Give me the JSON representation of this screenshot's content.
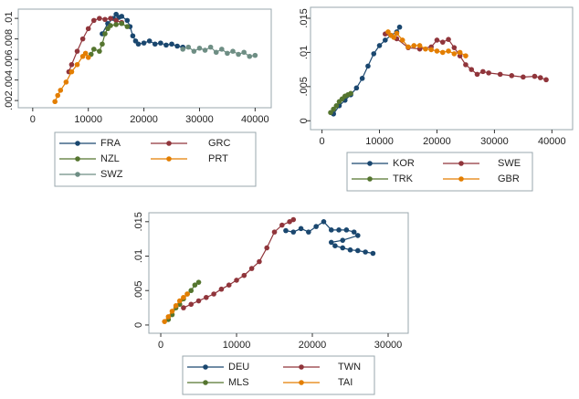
{
  "chart_data": [
    {
      "type": "line",
      "xlim": [
        -2600,
        42900
      ],
      "ylim": [
        0.0013,
        0.0109
      ],
      "xticks": [
        0,
        10000,
        20000,
        30000,
        40000
      ],
      "yticks": [
        {
          "value": 0.002,
          "label": ".002"
        },
        {
          "value": 0.004,
          "label": ".004"
        },
        {
          "value": 0.006,
          "label": ".006"
        },
        {
          "value": 0.008,
          "label": ".008"
        },
        {
          "value": 0.01,
          "label": ".01"
        }
      ],
      "series": [
        {
          "name": "FRA",
          "color": "#1a476f",
          "x": [
            12500,
            13500,
            14500,
            15000,
            15500,
            16000,
            17000,
            17500,
            18000,
            18500,
            19000,
            20000,
            21000,
            22000,
            23000,
            24000,
            25000,
            26000,
            27000
          ],
          "values": [
            0.0085,
            0.0095,
            0.01,
            0.0104,
            0.0101,
            0.0102,
            0.0098,
            0.0092,
            0.0083,
            0.0078,
            0.0075,
            0.0076,
            0.0078,
            0.0075,
            0.0076,
            0.0074,
            0.0075,
            0.0073,
            0.0072
          ]
        },
        {
          "name": "GRC",
          "color": "#90353b",
          "x": [
            6500,
            7000,
            8000,
            9000,
            10000,
            11000,
            12000,
            13000,
            14000,
            15000,
            16000
          ],
          "values": [
            0.0048,
            0.0055,
            0.0068,
            0.008,
            0.009,
            0.0098,
            0.01,
            0.0099,
            0.01,
            0.0098,
            0.0096
          ]
        },
        {
          "name": "NZL",
          "color": "#55752f",
          "x": [
            10500,
            11000,
            12000,
            12500,
            13000,
            13500,
            14000,
            15000,
            16000,
            17000
          ],
          "values": [
            0.0065,
            0.007,
            0.0068,
            0.0075,
            0.0085,
            0.009,
            0.0093,
            0.0094,
            0.0095,
            0.0092
          ]
        },
        {
          "name": "PRT",
          "color": "#e37e00",
          "x": [
            4000,
            4500,
            5000,
            6000,
            7000,
            8000,
            9000,
            9500,
            10000
          ],
          "values": [
            0.0019,
            0.0025,
            0.003,
            0.0038,
            0.0048,
            0.0055,
            0.0063,
            0.0066,
            0.0062
          ]
        },
        {
          "name": "SWZ",
          "color": "#6e8e84",
          "x": [
            27000,
            28000,
            29000,
            30000,
            31000,
            32000,
            33000,
            34000,
            35000,
            36000,
            37000,
            38000,
            39000,
            40000
          ],
          "values": [
            0.007,
            0.0072,
            0.0068,
            0.0071,
            0.0069,
            0.0072,
            0.0067,
            0.007,
            0.0066,
            0.0068,
            0.0065,
            0.0067,
            0.0063,
            0.0064
          ]
        }
      ]
    },
    {
      "type": "line",
      "xlim": [
        -2000,
        43600
      ],
      "ylim": [
        -0.0013,
        0.0166
      ],
      "xticks": [
        0,
        10000,
        20000,
        30000,
        40000
      ],
      "yticks": [
        0,
        {
          "value": 0.005,
          "label": ".005"
        },
        {
          "value": 0.01,
          "label": ".01"
        },
        {
          "value": 0.015,
          "label": ".015"
        }
      ],
      "series": [
        {
          "name": "KOR",
          "color": "#1a476f",
          "x": [
            2000,
            3000,
            4000,
            5000,
            6000,
            7000,
            8000,
            9000,
            10000,
            11000,
            12000,
            13000,
            13500
          ],
          "values": [
            0.001,
            0.0022,
            0.003,
            0.0038,
            0.0048,
            0.0062,
            0.008,
            0.0098,
            0.011,
            0.0118,
            0.0125,
            0.013,
            0.0137
          ]
        },
        {
          "name": "SWE",
          "color": "#90353b",
          "x": [
            11000,
            13000,
            15000,
            17000,
            19000,
            20000,
            21000,
            22000,
            23000,
            24000,
            25000,
            26000,
            27000,
            28000,
            29000,
            31000,
            33000,
            35000,
            37000,
            38000,
            39000
          ],
          "values": [
            0.0127,
            0.012,
            0.0107,
            0.0105,
            0.0108,
            0.0118,
            0.0115,
            0.0119,
            0.0107,
            0.0095,
            0.0082,
            0.0075,
            0.0068,
            0.0072,
            0.007,
            0.0068,
            0.0066,
            0.0064,
            0.0065,
            0.0063,
            0.006
          ]
        },
        {
          "name": "TRK",
          "color": "#55752f",
          "x": [
            1500,
            2000,
            2500,
            3000,
            3500,
            4000,
            4500,
            5000
          ],
          "values": [
            0.0012,
            0.0017,
            0.0022,
            0.0028,
            0.0032,
            0.0036,
            0.0038,
            0.004
          ]
        },
        {
          "name": "GBR",
          "color": "#e37e00",
          "x": [
            11500,
            12000,
            12500,
            13000,
            14000,
            15000,
            16000,
            17000,
            18000,
            19000,
            20000,
            21000,
            22000,
            23000,
            24000,
            25000
          ],
          "values": [
            0.013,
            0.0125,
            0.0122,
            0.0128,
            0.0118,
            0.0108,
            0.011,
            0.011,
            0.0105,
            0.0104,
            0.0102,
            0.01,
            0.0102,
            0.0098,
            0.01,
            0.0095
          ]
        }
      ]
    },
    {
      "type": "line",
      "xlim": [
        -1570,
        32650
      ],
      "ylim": [
        -0.0012,
        0.0163
      ],
      "xticks": [
        0,
        10000,
        20000,
        30000
      ],
      "yticks": [
        0,
        {
          "value": 0.005,
          "label": ".005"
        },
        {
          "value": 0.01,
          "label": ".01"
        },
        {
          "value": 0.015,
          "label": ".015"
        }
      ],
      "series": [
        {
          "name": "DEU",
          "color": "#1a476f",
          "x": [
            16500,
            17500,
            18500,
            19500,
            20500,
            21500,
            22500,
            23500,
            24500,
            25500,
            26000,
            24000,
            22500,
            23000,
            24000,
            25000,
            26000,
            27000,
            28000
          ],
          "values": [
            0.0137,
            0.0135,
            0.014,
            0.0135,
            0.0143,
            0.015,
            0.0138,
            0.0138,
            0.0138,
            0.0135,
            0.013,
            0.0123,
            0.012,
            0.0115,
            0.0112,
            0.0109,
            0.0108,
            0.0106,
            0.0104
          ]
        },
        {
          "name": "TWN",
          "color": "#90353b",
          "x": [
            3000,
            4000,
            5000,
            6000,
            7000,
            8000,
            9000,
            10000,
            11000,
            12000,
            13000,
            14000,
            15000,
            16000,
            17000,
            17500
          ],
          "values": [
            0.0025,
            0.003,
            0.0035,
            0.004,
            0.0045,
            0.0052,
            0.0058,
            0.0065,
            0.0072,
            0.0082,
            0.0092,
            0.0112,
            0.0135,
            0.0145,
            0.015,
            0.0153
          ]
        },
        {
          "name": "MLS",
          "color": "#55752f",
          "x": [
            1000,
            1500,
            2000,
            2500,
            3000,
            3500,
            4000,
            4500,
            5000
          ],
          "values": [
            0.0008,
            0.0015,
            0.0025,
            0.003,
            0.0038,
            0.0045,
            0.005,
            0.0058,
            0.0062
          ]
        },
        {
          "name": "TAI",
          "color": "#e37e00",
          "x": [
            500,
            1000,
            1500,
            2000,
            2500,
            3000,
            3500
          ],
          "values": [
            0.0005,
            0.0012,
            0.002,
            0.0028,
            0.0035,
            0.004,
            0.0045
          ]
        }
      ]
    }
  ]
}
